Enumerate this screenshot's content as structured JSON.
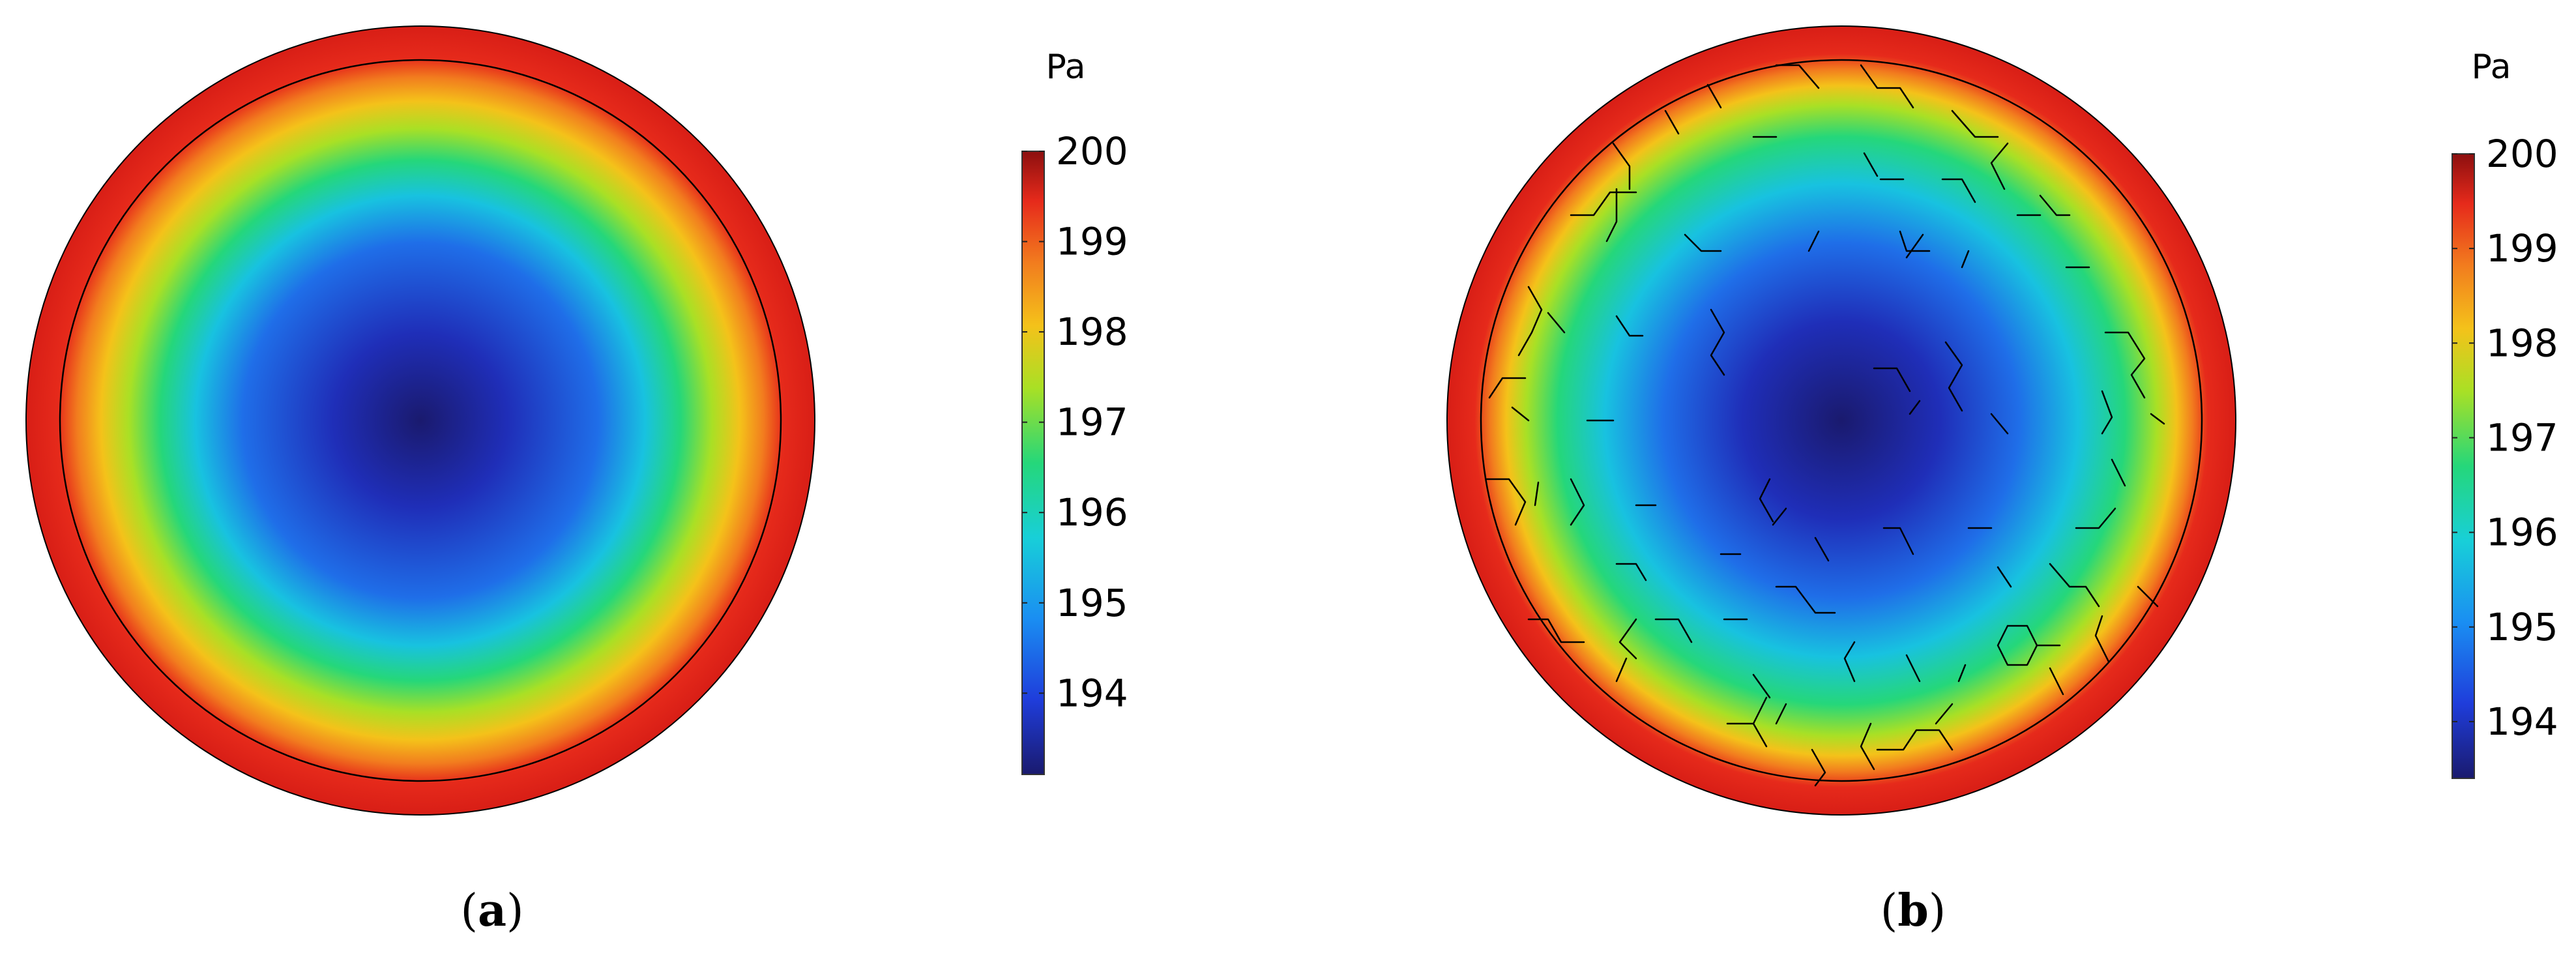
{
  "chart_data": [
    {
      "type": "heatmap",
      "panel_label": "(a)",
      "panel_letter": "a",
      "unit": "Pa",
      "colorbar": {
        "min": 193.1,
        "max": 200,
        "ticks": [
          "194",
          "195",
          "196",
          "197",
          "198",
          "199",
          "200"
        ],
        "tick_values": [
          194,
          195,
          196,
          197,
          198,
          199,
          200
        ]
      },
      "field": "radially symmetric pressure field: minimum at center, maximum at rim",
      "center_value": 193.1,
      "rim_value": 200
    },
    {
      "type": "heatmap",
      "panel_label": "(b)",
      "panel_letter": "b",
      "unit": "Pa",
      "colorbar": {
        "min": 193.4,
        "max": 200,
        "ticks": [
          "194",
          "195",
          "196",
          "197",
          "198",
          "199",
          "200"
        ],
        "tick_values": [
          194,
          195,
          196,
          197,
          198,
          199,
          200
        ]
      },
      "field": "pressure field with hexagonal fragment inclusions: minimum near center, maximum at rim",
      "center_value": 193.4,
      "rim_value": 200
    }
  ],
  "colormap": [
    "#1a1a6e",
    "#1f3ddb",
    "#1a8ef2",
    "#18cfd8",
    "#25d77a",
    "#a9e025",
    "#f4c21a",
    "#f27d1e",
    "#e62a1b",
    "#8c0f0f"
  ]
}
